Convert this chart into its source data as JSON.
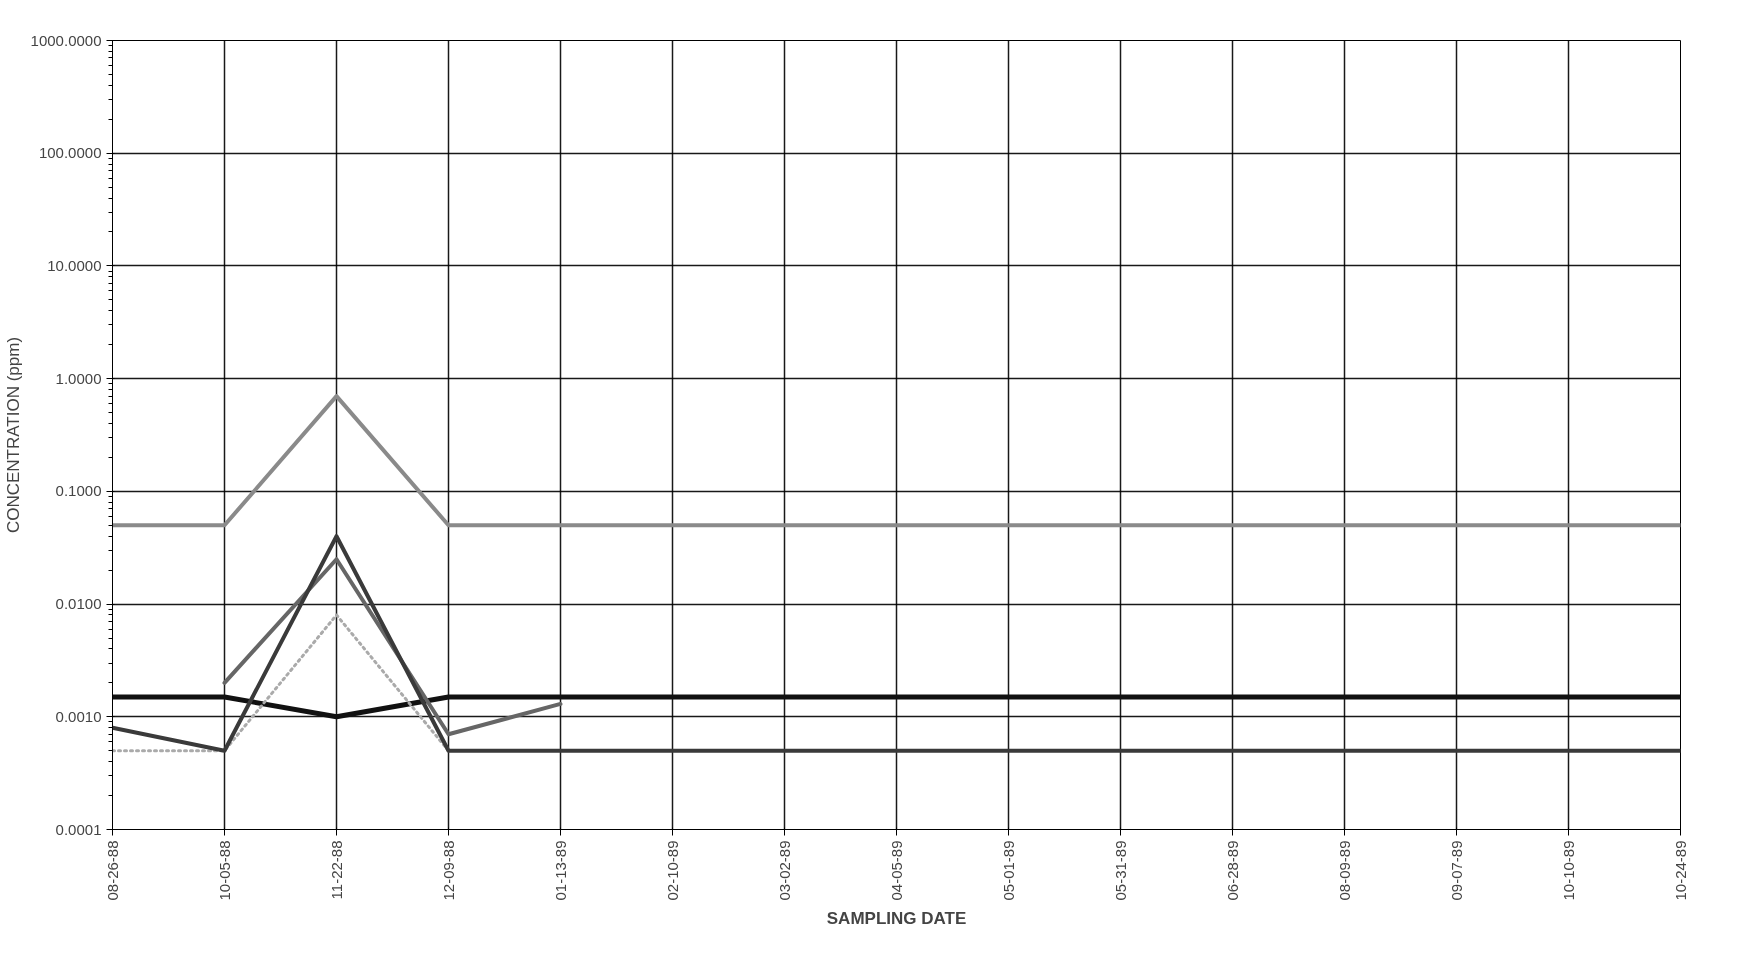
{
  "chart_data": {
    "type": "line",
    "xlabel": "SAMPLING DATE",
    "ylabel": "CONCENTRATION (ppm)",
    "categories": [
      "08-26-88",
      "10-05-88",
      "11-22-88",
      "12-09-88",
      "01-13-89",
      "02-10-89",
      "03-02-89",
      "04-05-89",
      "05-01-89",
      "05-31-89",
      "06-28-89",
      "08-09-89",
      "09-07-89",
      "10-10-89",
      "10-24-89"
    ],
    "log": true,
    "ylim": [
      0.0001,
      1000
    ],
    "yticks": [
      {
        "value": 0.0001,
        "label": "0.0001"
      },
      {
        "value": 0.001,
        "label": "0.0010"
      },
      {
        "value": 0.01,
        "label": "0.0100"
      },
      {
        "value": 0.1,
        "label": "0.1000"
      },
      {
        "value": 1,
        "label": "1.0000"
      },
      {
        "value": 10,
        "label": "10.0000"
      },
      {
        "value": 100,
        "label": "100.0000"
      },
      {
        "value": 1000,
        "label": "1000.0000"
      }
    ],
    "grid": true,
    "marker": "none",
    "line_style": "solid",
    "series": [
      {
        "color": "#8a8a8a",
        "values": [
          0.05,
          0.05,
          0.7,
          0.05,
          0.05,
          0.05,
          0.05,
          0.05,
          0.05,
          0.05,
          0.05,
          0.05,
          0.05,
          0.05,
          0.05
        ]
      },
      {
        "color": "#111111",
        "values": [
          0.0015,
          0.0015,
          0.001,
          0.0015,
          0.0015,
          0.0015,
          0.0015,
          0.0015,
          0.0015,
          0.0015,
          0.0015,
          0.0015,
          0.0015,
          0.0015,
          0.0015
        ]
      },
      {
        "color": "#666666",
        "values": [
          null,
          0.002,
          0.025,
          0.0007,
          0.0013,
          null,
          null,
          null,
          null,
          null,
          null,
          null,
          null,
          null,
          null
        ]
      },
      {
        "color": "#aaaaaa",
        "line_style": "dotted",
        "values": [
          0.0005,
          0.0005,
          0.008,
          0.0005,
          null,
          null,
          null,
          null,
          null,
          null,
          null,
          null,
          null,
          null,
          null
        ]
      },
      {
        "color": "#3a3a3a",
        "values": [
          0.0008,
          0.0005,
          0.04,
          0.0005,
          0.0005,
          0.0005,
          0.0005,
          0.0005,
          0.0005,
          0.0005,
          0.0005,
          0.0005,
          0.0005,
          0.0005,
          0.0005
        ]
      }
    ]
  }
}
